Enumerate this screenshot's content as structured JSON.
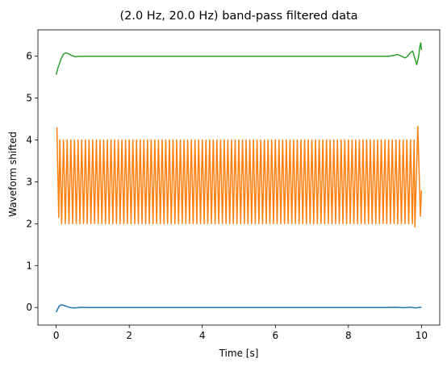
{
  "chart_data": {
    "type": "line",
    "title": "(2.0 Hz, 20.0 Hz) band-pass filtered data",
    "xlabel": "Time [s]",
    "ylabel": "Waveform shifted",
    "xlim": [
      -0.5,
      10.5
    ],
    "ylim": [
      -0.42,
      6.63
    ],
    "xticks": [
      0,
      2,
      4,
      6,
      8,
      10
    ],
    "yticks": [
      0,
      1,
      2,
      3,
      4,
      5,
      6
    ],
    "grid": false,
    "series": [
      {
        "color": "#1f77b4",
        "offset": 0,
        "kind": "transient",
        "points": [
          [
            0,
            -0.11
          ],
          [
            0.04,
            -0.04
          ],
          [
            0.08,
            0.03
          ],
          [
            0.13,
            0.06
          ],
          [
            0.18,
            0.06
          ],
          [
            0.24,
            0.04
          ],
          [
            0.3,
            0.02
          ],
          [
            0.38,
            0.0
          ],
          [
            0.46,
            -0.01
          ],
          [
            0.56,
            -0.005
          ],
          [
            0.7,
            0.005
          ],
          [
            0.85,
            0.0
          ],
          [
            1.0,
            0.0
          ],
          [
            9.0,
            0.0
          ],
          [
            9.3,
            0.005
          ],
          [
            9.5,
            -0.005
          ],
          [
            9.7,
            0.005
          ],
          [
            9.85,
            -0.01
          ],
          [
            9.95,
            0.005
          ],
          [
            10.0,
            0.0
          ]
        ]
      },
      {
        "color": "#ff7f0e",
        "offset": 3,
        "kind": "oscillation",
        "frequency_hz": 10,
        "amplitude": 1.0,
        "edge_peaks": [
          [
            0.02,
            4.3
          ],
          [
            0.07,
            2.15
          ],
          [
            9.82,
            1.92
          ],
          [
            9.9,
            4.32
          ],
          [
            9.97,
            2.18
          ]
        ],
        "t_end": 10.0,
        "end_value": 2.8
      },
      {
        "color": "#2ca02c",
        "offset": 6,
        "kind": "transient",
        "points": [
          [
            0,
            5.56
          ],
          [
            0.04,
            5.7
          ],
          [
            0.08,
            5.8
          ],
          [
            0.14,
            5.95
          ],
          [
            0.2,
            6.05
          ],
          [
            0.26,
            6.08
          ],
          [
            0.34,
            6.06
          ],
          [
            0.42,
            6.02
          ],
          [
            0.52,
            5.99
          ],
          [
            0.65,
            6.0
          ],
          [
            0.8,
            6.0
          ],
          [
            1.0,
            6.0
          ],
          [
            8.9,
            6.0
          ],
          [
            9.1,
            6.0
          ],
          [
            9.25,
            6.02
          ],
          [
            9.35,
            6.04
          ],
          [
            9.45,
            6.0
          ],
          [
            9.55,
            5.96
          ],
          [
            9.62,
            6.0
          ],
          [
            9.7,
            6.09
          ],
          [
            9.76,
            6.12
          ],
          [
            9.82,
            5.95
          ],
          [
            9.87,
            5.8
          ],
          [
            9.92,
            5.98
          ],
          [
            9.95,
            6.2
          ],
          [
            9.98,
            6.32
          ],
          [
            10.0,
            6.15
          ]
        ]
      }
    ]
  }
}
